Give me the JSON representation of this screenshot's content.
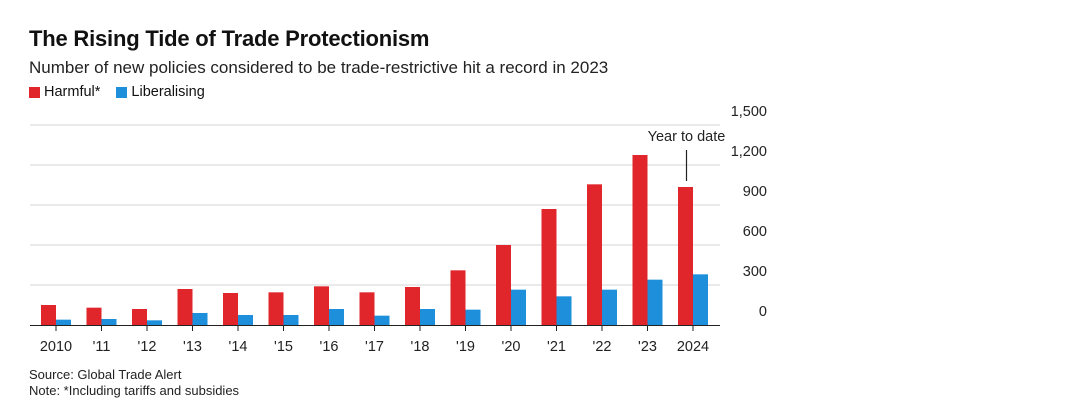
{
  "chart_data": {
    "type": "bar",
    "title": "The Rising Tide of Trade Protectionism",
    "subtitle": "Number of new policies considered to be trade-restrictive hit a record in 2023",
    "categories": [
      "2010",
      "'11",
      "'12",
      "'13",
      "'14",
      "'15",
      "'16",
      "'17",
      "'18",
      "'19",
      "'20",
      "'21",
      "'22",
      "'23",
      "2024"
    ],
    "series": [
      {
        "name": "Harmful*",
        "color": "#e0262a",
        "values": [
          150,
          130,
          120,
          270,
          240,
          245,
          290,
          245,
          285,
          410,
          600,
          870,
          1055,
          1275,
          1035
        ]
      },
      {
        "name": "Liberalising",
        "color": "#1d8fdb",
        "values": [
          40,
          45,
          35,
          90,
          75,
          75,
          120,
          70,
          120,
          115,
          265,
          215,
          265,
          340,
          380
        ]
      }
    ],
    "y_ticks": [
      0,
      300,
      600,
      900,
      1200,
      1500
    ],
    "y_tick_labels": [
      "0",
      "300",
      "600",
      "900",
      "1,200",
      "1,500"
    ],
    "ylim": [
      0,
      1500
    ],
    "xlabel": "",
    "ylabel": "",
    "grid": true,
    "annotation": {
      "category": "2024",
      "text": "Year to date"
    },
    "source": "Source: Global Trade Alert",
    "note": "Note: *Including tariffs and subsidies"
  }
}
